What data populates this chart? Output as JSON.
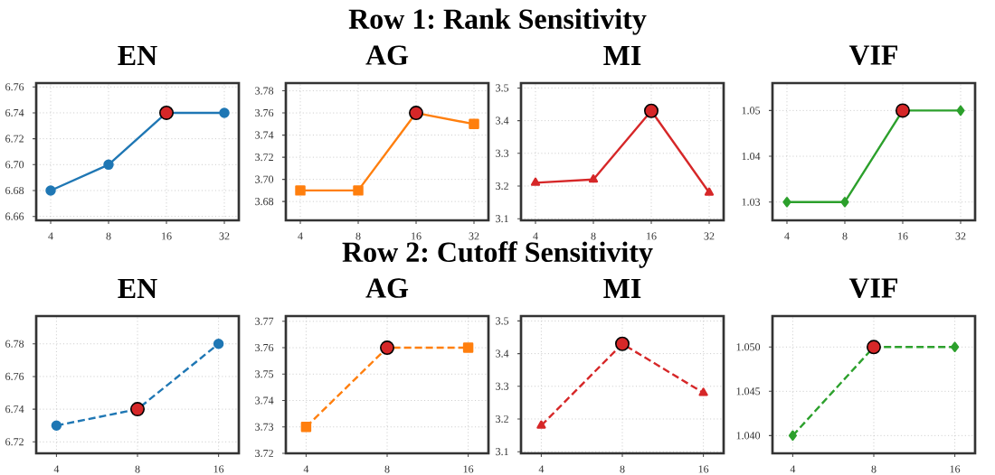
{
  "chart_data": [
    {
      "type": "line",
      "title": "EN",
      "annotations": [
        "Row 1: Rank Sensitivity"
      ],
      "categories": [
        "4",
        "8",
        "16",
        "32"
      ],
      "line_style": "solid",
      "grid": true,
      "ylim": [
        6.657,
        6.763
      ],
      "yticks": [
        {
          "value": 6.66,
          "label": "6.66"
        },
        {
          "value": 6.68,
          "label": "6.68"
        },
        {
          "value": 6.7,
          "label": "6.70"
        },
        {
          "value": 6.72,
          "label": "6.72"
        },
        {
          "value": 6.74,
          "label": "6.74"
        },
        {
          "value": 6.76,
          "label": "6.76"
        }
      ],
      "series": [
        {
          "color": "#1f77b4",
          "marker": "circle",
          "values": [
            6.68,
            6.7,
            6.74,
            6.74
          ]
        },
        {
          "type": "scatter",
          "marker": "circle",
          "color": "#d62728",
          "x": [
            "16"
          ],
          "values": [
            6.74
          ]
        }
      ]
    },
    {
      "type": "line",
      "title": "AG",
      "categories": [
        "4",
        "8",
        "16",
        "32"
      ],
      "line_style": "solid",
      "grid": true,
      "ylim": [
        3.663,
        3.787
      ],
      "yticks": [
        {
          "value": 3.68,
          "label": "3.68"
        },
        {
          "value": 3.7,
          "label": "3.70"
        },
        {
          "value": 3.72,
          "label": "3.72"
        },
        {
          "value": 3.74,
          "label": "3.74"
        },
        {
          "value": 3.76,
          "label": "3.76"
        },
        {
          "value": 3.78,
          "label": "3.78"
        }
      ],
      "series": [
        {
          "color": "#ff7f0e",
          "marker": "square",
          "values": [
            3.69,
            3.69,
            3.76,
            3.75
          ]
        },
        {
          "type": "scatter",
          "marker": "circle",
          "color": "#d62728",
          "x": [
            "16"
          ],
          "values": [
            3.76
          ]
        }
      ]
    },
    {
      "type": "line",
      "title": "MI",
      "categories": [
        "4",
        "8",
        "16",
        "32"
      ],
      "line_style": "solid",
      "grid": true,
      "ylim": [
        3.095,
        3.515
      ],
      "yticks": [
        3.1,
        3.2,
        3.3,
        3.4,
        3.5
      ],
      "series": [
        {
          "color": "#d62728",
          "marker": "triangle",
          "values": [
            3.21,
            3.22,
            3.43,
            3.18
          ]
        },
        {
          "type": "scatter",
          "marker": "circle",
          "color": "#d62728",
          "x": [
            "16"
          ],
          "values": [
            3.43
          ]
        }
      ]
    },
    {
      "type": "line",
      "title": "VIF",
      "categories": [
        "4",
        "8",
        "16",
        "32"
      ],
      "line_style": "solid",
      "grid": true,
      "ylim": [
        1.026,
        1.056
      ],
      "yticks": [
        1.03,
        1.04,
        1.05
      ],
      "series": [
        {
          "color": "#2ca02c",
          "marker": "diamond",
          "values": [
            1.03,
            1.03,
            1.05,
            1.05
          ]
        },
        {
          "type": "scatter",
          "marker": "circle",
          "color": "#d62728",
          "x": [
            "16"
          ],
          "values": [
            1.05
          ]
        }
      ]
    },
    {
      "type": "line",
      "title": "EN",
      "annotations": [
        "Row 2: Cutoff Sensitivity"
      ],
      "categories": [
        "4",
        "8",
        "16"
      ],
      "line_style": "dashed",
      "grid": true,
      "ylim": [
        6.713,
        6.797
      ],
      "yticks": [
        6.72,
        6.74,
        6.76,
        6.78
      ],
      "series": [
        {
          "color": "#1f77b4",
          "marker": "circle",
          "values": [
            6.73,
            6.74,
            6.78
          ]
        },
        {
          "type": "scatter",
          "marker": "circle",
          "color": "#d62728",
          "x": [
            "8"
          ],
          "values": [
            6.74
          ]
        }
      ]
    },
    {
      "type": "line",
      "title": "AG",
      "categories": [
        "4",
        "8",
        "16"
      ],
      "line_style": "dashed",
      "grid": true,
      "ylim": [
        3.72,
        3.772
      ],
      "yticks": [
        3.72,
        3.73,
        3.74,
        3.75,
        3.76,
        3.77
      ],
      "series": [
        {
          "color": "#ff7f0e",
          "marker": "square",
          "values": [
            3.73,
            3.76,
            3.76
          ]
        },
        {
          "type": "scatter",
          "marker": "circle",
          "color": "#d62728",
          "x": [
            "8"
          ],
          "values": [
            3.76
          ]
        }
      ]
    },
    {
      "type": "line",
      "title": "MI",
      "categories": [
        "4",
        "8",
        "16"
      ],
      "line_style": "dashed",
      "grid": true,
      "ylim": [
        3.095,
        3.515
      ],
      "yticks": [
        3.1,
        3.2,
        3.3,
        3.4,
        3.5
      ],
      "series": [
        {
          "color": "#d62728",
          "marker": "triangle",
          "values": [
            3.18,
            3.43,
            3.28
          ]
        },
        {
          "type": "scatter",
          "marker": "circle",
          "color": "#d62728",
          "x": [
            "8"
          ],
          "values": [
            3.43
          ]
        }
      ]
    },
    {
      "type": "line",
      "title": "VIF",
      "categories": [
        "4",
        "8",
        "16"
      ],
      "line_style": "dashed",
      "grid": true,
      "ylim": [
        1.038,
        1.0535
      ],
      "yticks": [
        {
          "value": 1.04,
          "label": "1.040"
        },
        {
          "value": 1.045,
          "label": "1.045"
        },
        {
          "value": 1.05,
          "label": "1.050"
        }
      ],
      "series": [
        {
          "color": "#2ca02c",
          "marker": "diamond",
          "values": [
            1.04,
            1.05,
            1.05
          ]
        },
        {
          "type": "scatter",
          "marker": "circle",
          "color": "#d62728",
          "x": [
            "8"
          ],
          "values": [
            1.05
          ]
        }
      ]
    }
  ]
}
